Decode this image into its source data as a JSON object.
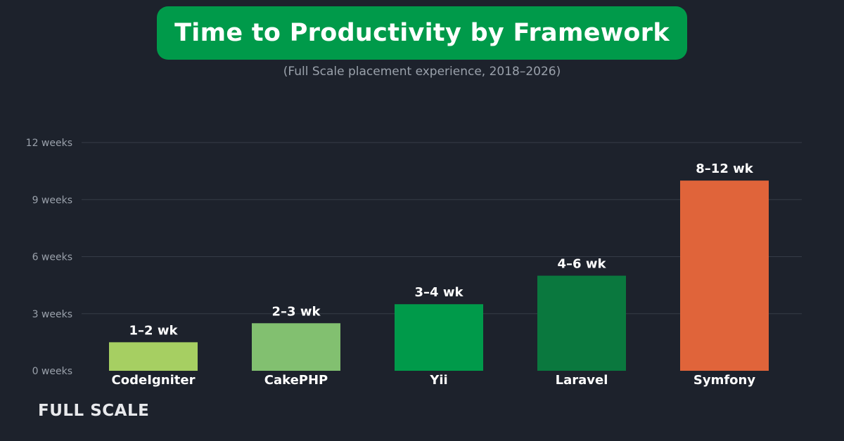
{
  "header": {
    "title": "Time to Productivity by Framework",
    "subtitle": "(Full Scale placement experience, 2018–2026)"
  },
  "brand": "FULL SCALE",
  "chart_data": {
    "type": "bar",
    "categories": [
      "CodeIgniter",
      "CakePHP",
      "Yii",
      "Laravel",
      "Symfony"
    ],
    "values": [
      1.5,
      2.5,
      3.5,
      5,
      10
    ],
    "data_labels": [
      "1–2 wk",
      "2–3 wk",
      "3–4 wk",
      "4–6 wk",
      "8–12 wk"
    ],
    "colors": [
      "#a6cf62",
      "#82c070",
      "#009a4a",
      "#0a783e",
      "#e0643a"
    ],
    "ylim": [
      0,
      12
    ],
    "yticks": [
      0,
      3,
      6,
      9,
      12
    ],
    "ytick_labels": [
      "0 weeks",
      "3 weeks",
      "6 weeks",
      "9 weeks",
      "12 weeks"
    ],
    "grid": true,
    "xlabel": "",
    "ylabel": ""
  }
}
